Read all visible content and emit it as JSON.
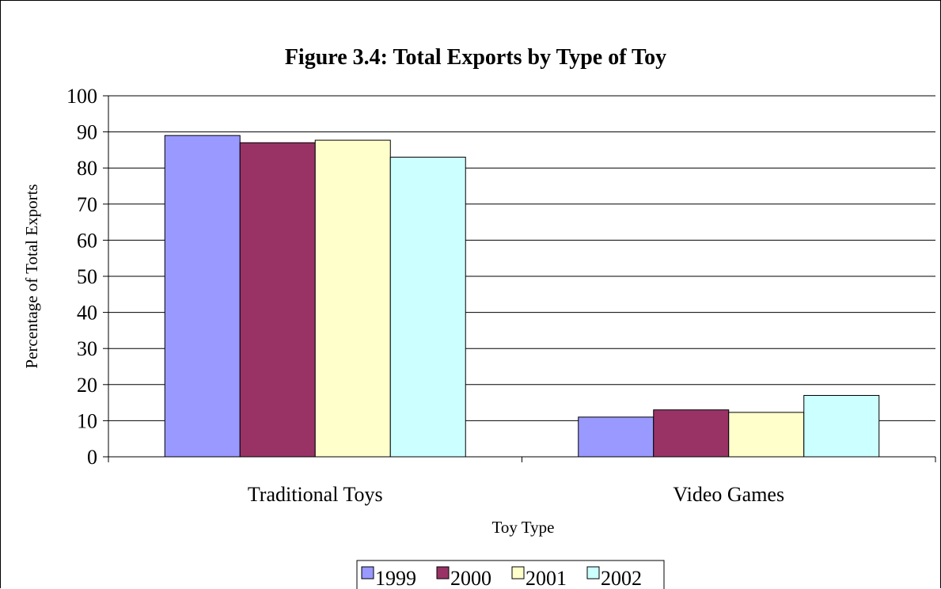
{
  "chart_data": {
    "type": "bar",
    "title": "Figure 3.4:  Total Exports by Type of Toy",
    "xlabel": "Toy Type",
    "ylabel": "Percentage of Total Exports",
    "categories": [
      "Traditional Toys",
      "Video Games"
    ],
    "series": [
      {
        "name": "1999",
        "values": [
          89,
          11
        ],
        "color": "#9999ff"
      },
      {
        "name": "2000",
        "values": [
          87,
          13
        ],
        "color": "#993366"
      },
      {
        "name": "2001",
        "values": [
          87.7,
          12.3
        ],
        "color": "#ffffcc"
      },
      {
        "name": "2002",
        "values": [
          83,
          17
        ],
        "color": "#ccffff"
      }
    ],
    "ylim": [
      0,
      100
    ],
    "yticks": [
      "0",
      "10",
      "20",
      "30",
      "40",
      "50",
      "60",
      "70",
      "80",
      "90",
      "100"
    ],
    "grid": true,
    "legend_position": "bottom"
  }
}
